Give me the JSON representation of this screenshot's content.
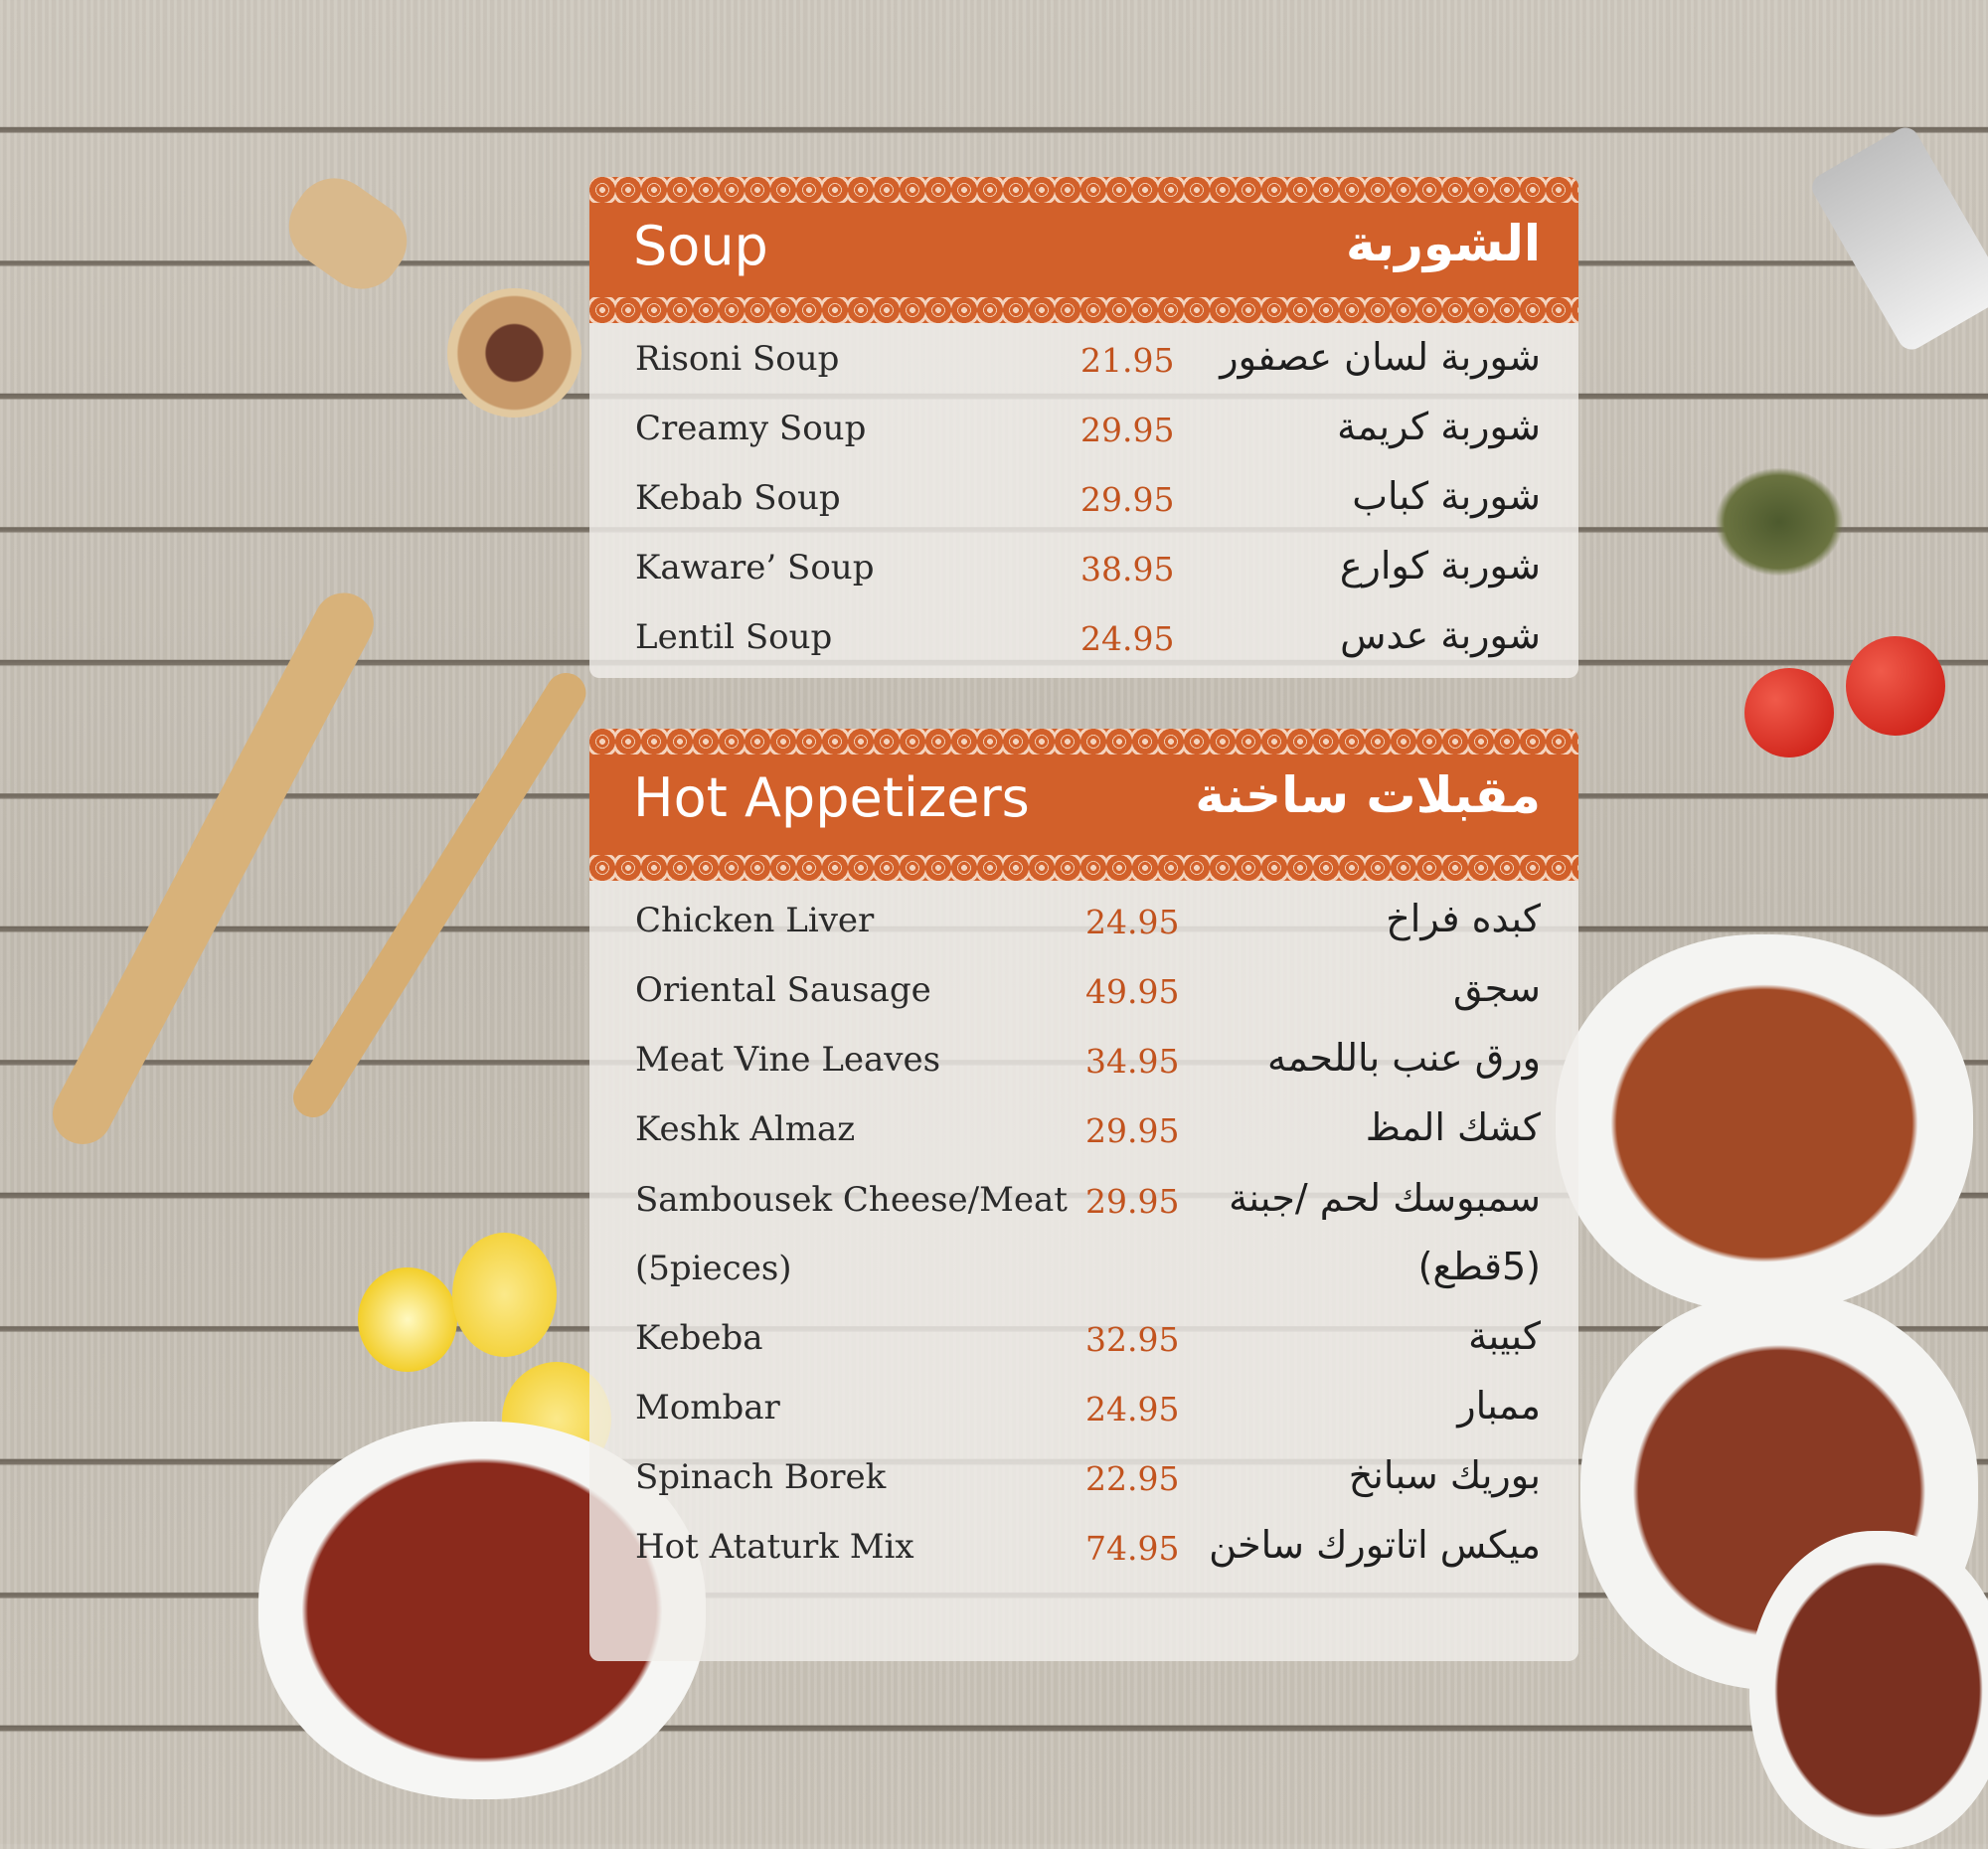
{
  "colors": {
    "accent": "#d2602a",
    "price": "#c2531e"
  },
  "sections": [
    {
      "title_en": "Soup",
      "title_ar": "الشوربة",
      "items": [
        {
          "en": "Risoni Soup",
          "price": "21.95",
          "ar": "شوربة لسان عصفور"
        },
        {
          "en": "Creamy Soup",
          "price": "29.95",
          "ar": "شوربة كريمة"
        },
        {
          "en": "Kebab Soup",
          "price": "29.95",
          "ar": "شوربة كباب"
        },
        {
          "en": "Kaware’ Soup",
          "price": "38.95",
          "ar": "شوربة كوارع"
        },
        {
          "en": "Lentil Soup",
          "price": "24.95",
          "ar": "شوربة عدس"
        }
      ]
    },
    {
      "title_en": "Hot Appetizers",
      "title_ar": "مقبلات ساخنة",
      "items": [
        {
          "en": "Chicken Liver",
          "price": "24.95",
          "ar": "كبده فراخ"
        },
        {
          "en": "Oriental Sausage",
          "price": "49.95",
          "ar": "سجق"
        },
        {
          "en": "Meat Vine Leaves",
          "price": "34.95",
          "ar": "ورق عنب باللحمه"
        },
        {
          "en": "Keshk Almaz",
          "price": "29.95",
          "ar": "كشك المظ"
        },
        {
          "en": "Sambousek Cheese/Meat",
          "price": "29.95",
          "ar": "سمبوسك لحم /جبنة"
        },
        {
          "en": "(5pieces)",
          "price": "",
          "ar": "(5قطع)"
        },
        {
          "en": "Kebeba",
          "price": "32.95",
          "ar": "كبيبة"
        },
        {
          "en": "Mombar",
          "price": "24.95",
          "ar": "ممبار"
        },
        {
          "en": "Spinach Borek",
          "price": "22.95",
          "ar": "بوريك سبانخ"
        },
        {
          "en": "Hot Ataturk Mix",
          "price": "74.95",
          "ar": "ميكس اتاتورك ساخن"
        }
      ]
    }
  ]
}
